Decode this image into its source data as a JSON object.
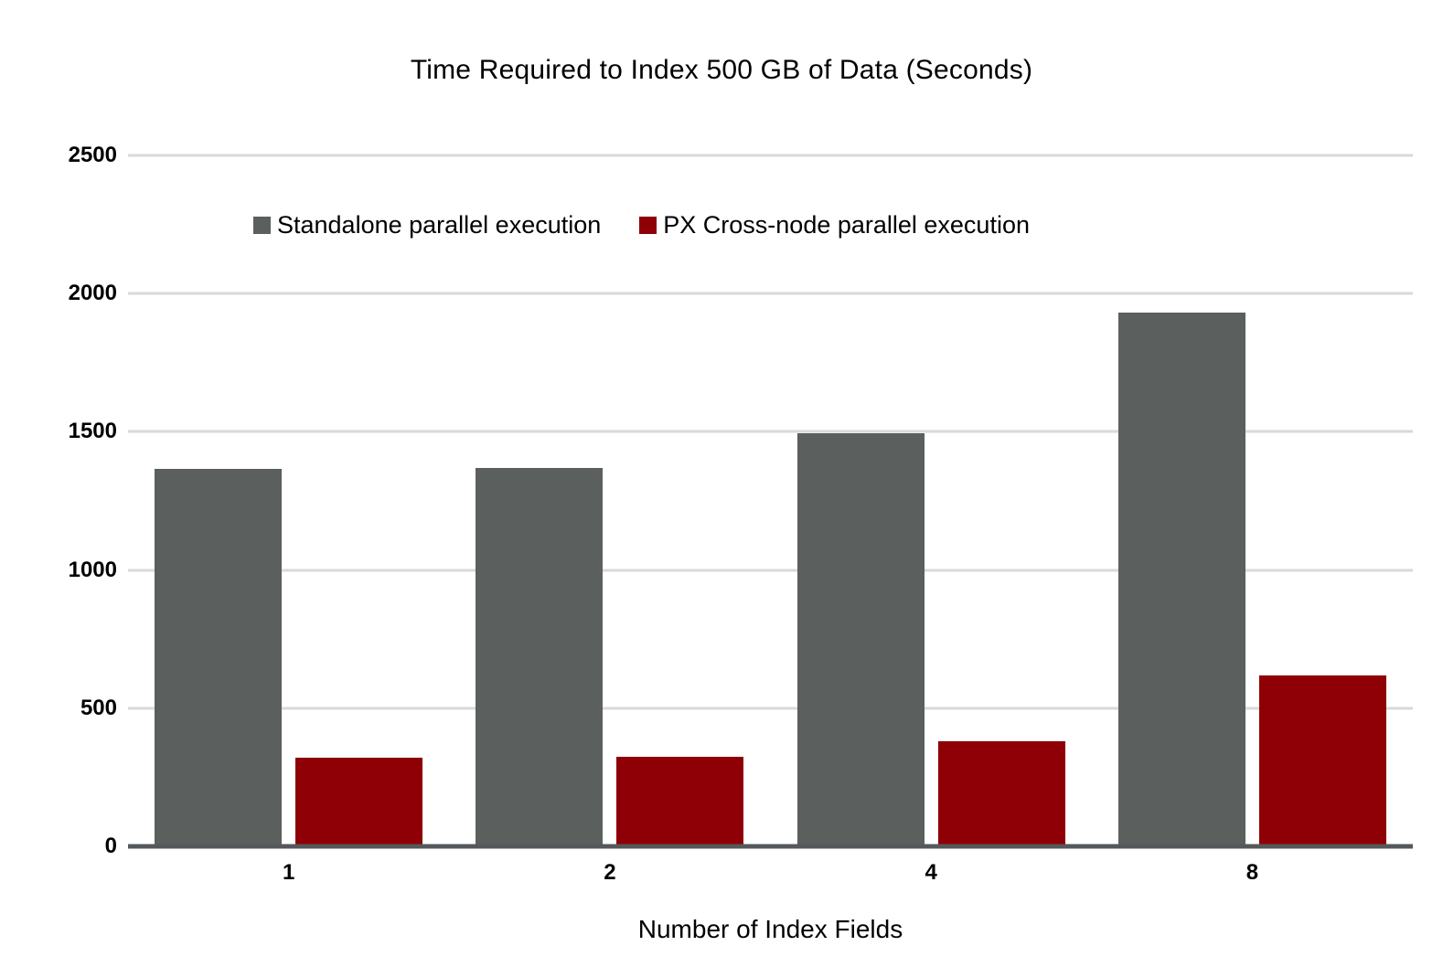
{
  "chart_data": {
    "type": "bar",
    "title": "Time Required to Index 500 GB of Data (Seconds)",
    "categories": [
      "1",
      "2",
      "4",
      "8"
    ],
    "series": [
      {
        "name": "Standalone parallel execution",
        "color": "#5b605e",
        "values": [
          1365,
          1370,
          1495,
          1930
        ]
      },
      {
        "name": "PX Cross-node parallel execution",
        "color": "#8e0005",
        "values": [
          320,
          325,
          380,
          620
        ]
      }
    ],
    "xlabel": "Number of Index Fields",
    "ylabel": "",
    "ylim": [
      0,
      2500
    ],
    "yticks": [
      0,
      500,
      1000,
      1500,
      2000,
      2500
    ],
    "grid": true,
    "legend_position": "top-center",
    "gridline_color": "#d9d9d9",
    "axis_line_color": "#55585b",
    "text_color": "#000000",
    "background_color": "#ffffff"
  }
}
